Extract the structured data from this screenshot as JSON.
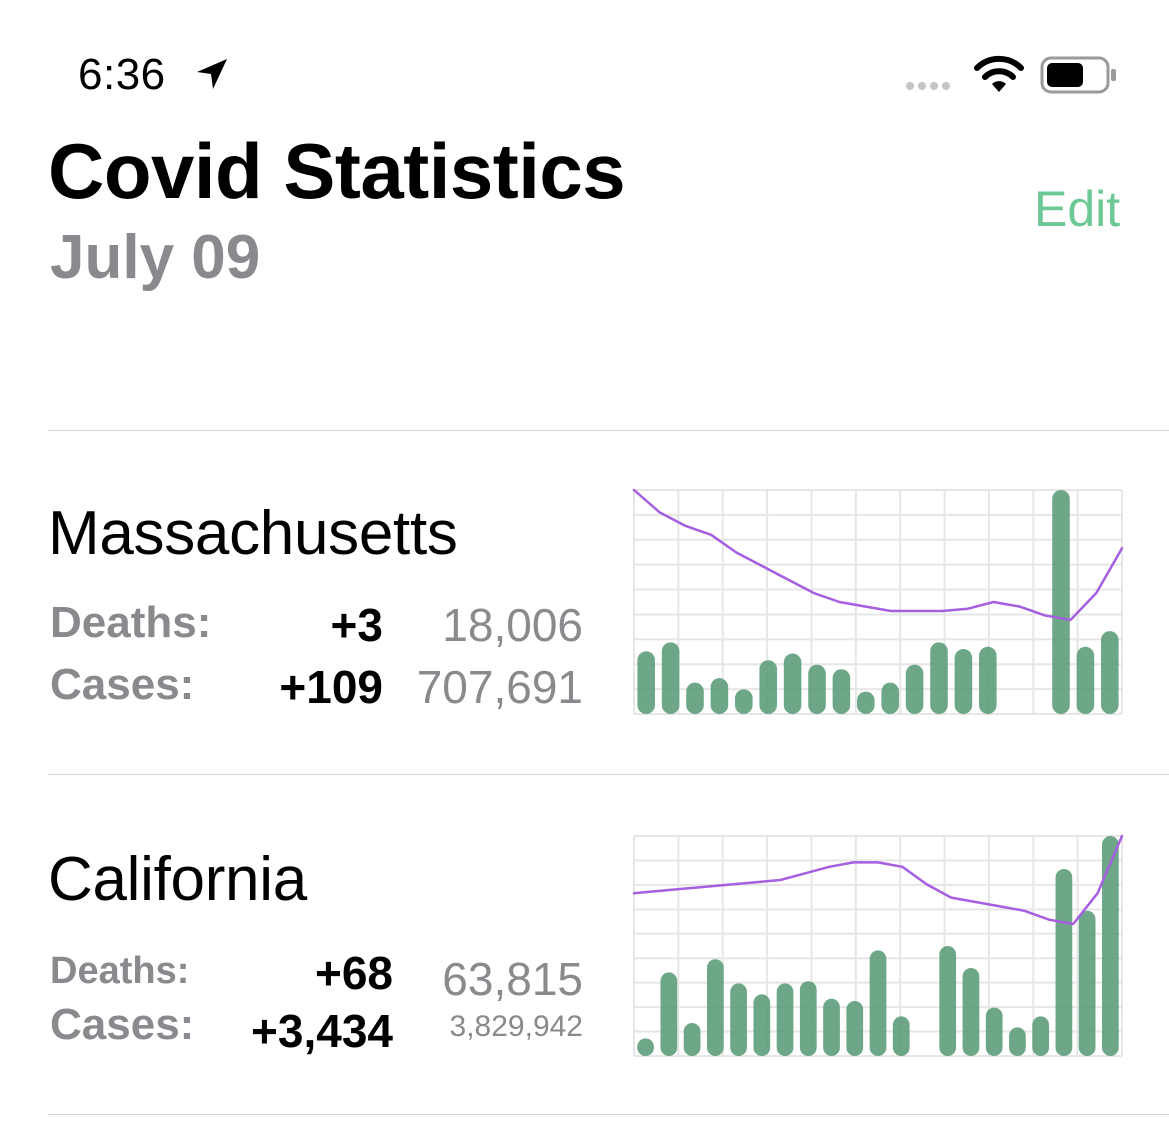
{
  "status_bar": {
    "time": "6:36",
    "icons": [
      "location-arrow-icon",
      "cellular-signal-icon",
      "wifi-icon",
      "battery-icon"
    ]
  },
  "header": {
    "title": "Covid Statistics",
    "date": "July 09",
    "edit_label": "Edit"
  },
  "colors": {
    "accent": "#6cc894",
    "bar": "#5a9b78",
    "line": "#a55fe0",
    "grid": "#e6e6e6",
    "secondary_text": "#8a8a8e"
  },
  "states": [
    {
      "name": "Massachusetts",
      "deaths_label": "Deaths:",
      "deaths_delta": "+3",
      "deaths_total": "18,006",
      "cases_label": "Cases:",
      "cases_delta": "+109",
      "cases_total": "707,691",
      "chart_data": {
        "type": "bar",
        "series": [
          {
            "type": "bar",
            "values": [
              0.28,
              0.32,
              0.14,
              0.16,
              0.11,
              0.24,
              0.27,
              0.22,
              0.2,
              0.1,
              0.14,
              0.22,
              0.32,
              0.29,
              0.3,
              null,
              null,
              1.0,
              0.3,
              0.37
            ]
          },
          {
            "type": "line",
            "values": [
              1.0,
              0.9,
              0.84,
              0.8,
              0.72,
              0.66,
              0.6,
              0.54,
              0.5,
              0.48,
              0.46,
              0.46,
              0.46,
              0.47,
              0.5,
              0.48,
              0.44,
              0.42,
              0.54,
              0.74
            ]
          }
        ],
        "ylim": [
          0,
          1
        ],
        "grid": true
      }
    },
    {
      "name": "California",
      "deaths_label": "Deaths:",
      "deaths_delta": "+68",
      "deaths_total": "63,815",
      "cases_label": "Cases:",
      "cases_delta": "+3,434",
      "cases_total": "3,829,942",
      "chart_data": {
        "type": "bar",
        "series": [
          {
            "type": "bar",
            "values": [
              0.08,
              0.38,
              0.15,
              0.44,
              0.33,
              0.28,
              0.33,
              0.34,
              0.26,
              0.25,
              0.48,
              0.18,
              null,
              0.5,
              0.4,
              0.22,
              0.13,
              0.18,
              0.85,
              0.66,
              1.0
            ]
          },
          {
            "type": "line",
            "values": [
              0.74,
              0.75,
              0.76,
              0.77,
              0.78,
              0.79,
              0.8,
              0.83,
              0.86,
              0.88,
              0.88,
              0.86,
              0.78,
              0.72,
              0.7,
              0.68,
              0.66,
              0.62,
              0.6,
              0.74,
              1.0
            ]
          }
        ],
        "ylim": [
          0,
          1
        ],
        "grid": true
      }
    }
  ]
}
